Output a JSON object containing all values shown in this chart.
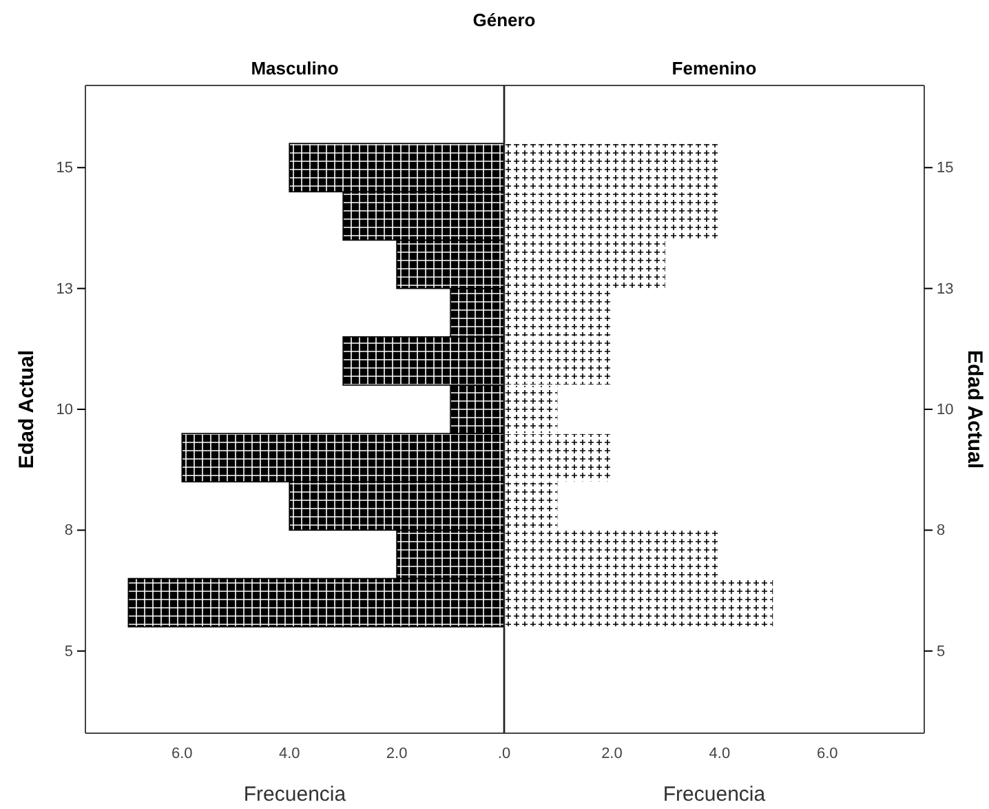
{
  "chart_data": [
    {
      "type": "histogram",
      "orientation": "horizontal",
      "title": "Género",
      "subtitle": "Masculino",
      "xlabel": "Frecuencia",
      "ylabel": "Edad Actual",
      "bins": [
        5.5,
        6.5,
        7.5,
        8.5,
        9.5,
        10.5,
        11.5,
        12.5,
        13.5,
        14.5,
        15.5
      ],
      "values": [
        7,
        2,
        4,
        6,
        1,
        3,
        1,
        2,
        3,
        4
      ],
      "color": "#000000",
      "xlim": [
        7.8,
        0
      ],
      "xticks": [
        {
          "value": 6,
          "label": "6.0"
        },
        {
          "value": 4,
          "label": "4.0"
        },
        {
          "value": 2,
          "label": "2.0"
        },
        {
          "value": 0,
          "label": ".0"
        }
      ],
      "ylim": [
        3.3,
        16.7
      ],
      "yticks": [
        {
          "value": 5,
          "label": "5"
        },
        {
          "value": 7.5,
          "label": "8"
        },
        {
          "value": 10,
          "label": "10"
        },
        {
          "value": 12.5,
          "label": "13"
        },
        {
          "value": 15,
          "label": "15"
        }
      ]
    },
    {
      "type": "histogram",
      "orientation": "horizontal",
      "subtitle": "Femenino",
      "xlabel": "Frecuencia",
      "ylabel": "Edad Actual",
      "bins": [
        5.5,
        6.5,
        7.5,
        8.5,
        9.5,
        10.5,
        11.5,
        12.5,
        13.5,
        14.5,
        15.5
      ],
      "values": [
        5,
        4,
        1,
        2,
        1,
        2,
        2,
        3,
        4,
        4
      ],
      "color": "#ffffff",
      "xlim": [
        0,
        7.8
      ],
      "xticks": [
        {
          "value": 0,
          "label": null
        },
        {
          "value": 2,
          "label": "2.0"
        },
        {
          "value": 4,
          "label": "4.0"
        },
        {
          "value": 6,
          "label": "6.0"
        }
      ],
      "ylim": [
        3.3,
        16.7
      ],
      "yticks": [
        {
          "value": 5,
          "label": "5"
        },
        {
          "value": 7.5,
          "label": "8"
        },
        {
          "value": 10,
          "label": "10"
        },
        {
          "value": 12.5,
          "label": "13"
        },
        {
          "value": 15,
          "label": "15"
        }
      ]
    }
  ]
}
